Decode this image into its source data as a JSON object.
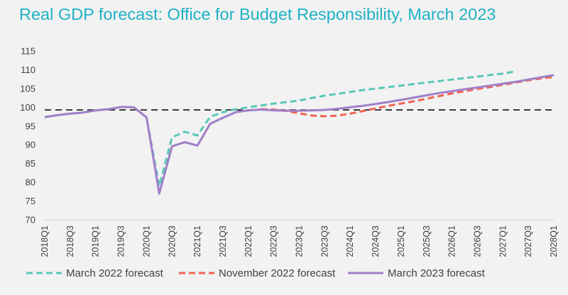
{
  "chart_data": {
    "type": "line",
    "title": "Real GDP forecast: Office for Budget Responsibility, March 2023",
    "xlabel": "",
    "ylabel": "",
    "ylim": [
      70,
      115
    ],
    "yticks": [
      70,
      75,
      80,
      85,
      90,
      95,
      100,
      105,
      110,
      115
    ],
    "grid": false,
    "legend_position": "bottom",
    "categories": [
      "2018Q1",
      "2018Q2",
      "2018Q3",
      "2018Q4",
      "2019Q1",
      "2019Q2",
      "2019Q3",
      "2019Q4",
      "2020Q1",
      "2020Q2",
      "2020Q3",
      "2020Q4",
      "2021Q1",
      "2021Q2",
      "2021Q3",
      "2021Q4",
      "2022Q1",
      "2022Q2",
      "2022Q3",
      "2022Q4",
      "2023Q1",
      "2023Q2",
      "2023Q3",
      "2023Q4",
      "2024Q1",
      "2024Q2",
      "2024Q3",
      "2024Q4",
      "2025Q1",
      "2025Q2",
      "2025Q3",
      "2025Q4",
      "2026Q1",
      "2026Q2",
      "2026Q3",
      "2026Q4",
      "2027Q1",
      "2027Q2",
      "2027Q3",
      "2027Q4",
      "2028Q1"
    ],
    "tick_labels": [
      "2018Q1",
      "2018Q3",
      "2019Q1",
      "2019Q3",
      "2020Q1",
      "2020Q3",
      "2021Q1",
      "2021Q3",
      "2022Q1",
      "2022Q3",
      "2023Q1",
      "2023Q3",
      "2024Q1",
      "2024Q3",
      "2025Q1",
      "2025Q3",
      "2026Q1",
      "2026Q3",
      "2027Q1",
      "2027Q3",
      "2028Q1"
    ],
    "reference_line": {
      "y": 99.3,
      "style": "dashed"
    },
    "series": [
      {
        "name": "March 2022 forecast",
        "color": "#5ac8b7",
        "dash": "dashed",
        "values": [
          97.4,
          97.9,
          98.3,
          98.6,
          99.2,
          99.5,
          100.1,
          100.0,
          97.3,
          79.0,
          92.0,
          93.5,
          92.5,
          97.5,
          98.7,
          99.5,
          100.0,
          100.5,
          101.0,
          101.4,
          101.8,
          102.5,
          103.1,
          103.6,
          104.1,
          104.6,
          105.0,
          105.4,
          105.8,
          106.2,
          106.6,
          107.0,
          107.4,
          107.8,
          108.2,
          108.6,
          109.0,
          109.6,
          null,
          null,
          null
        ]
      },
      {
        "name": "November 2022 forecast",
        "color": "#ef6351",
        "dash": "dashed",
        "values": [
          null,
          null,
          null,
          null,
          null,
          null,
          null,
          null,
          null,
          null,
          null,
          null,
          null,
          null,
          null,
          null,
          null,
          99.5,
          99.4,
          99.0,
          98.4,
          97.8,
          97.6,
          97.8,
          98.3,
          99.0,
          99.7,
          100.4,
          101.0,
          101.6,
          102.3,
          103.0,
          103.7,
          104.3,
          104.9,
          105.4,
          106.0,
          106.6,
          107.2,
          107.7,
          108.1
        ]
      },
      {
        "name": "March 2023 forecast",
        "color": "#a07fc8",
        "dash": "solid",
        "values": [
          97.4,
          97.9,
          98.3,
          98.6,
          99.2,
          99.5,
          100.1,
          100.0,
          97.3,
          77.0,
          89.6,
          90.7,
          89.8,
          95.6,
          97.2,
          98.7,
          99.2,
          99.4,
          99.2,
          99.1,
          99.1,
          99.2,
          99.3,
          99.6,
          100.0,
          100.4,
          100.9,
          101.4,
          102.0,
          102.6,
          103.2,
          103.8,
          104.3,
          104.8,
          105.3,
          105.8,
          106.3,
          106.8,
          107.4,
          108.0,
          108.6
        ]
      }
    ]
  }
}
